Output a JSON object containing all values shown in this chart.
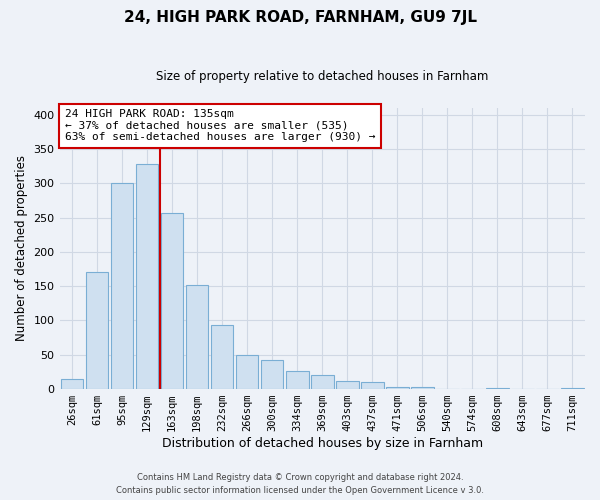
{
  "title": "24, HIGH PARK ROAD, FARNHAM, GU9 7JL",
  "subtitle": "Size of property relative to detached houses in Farnham",
  "xlabel": "Distribution of detached houses by size in Farnham",
  "ylabel": "Number of detached properties",
  "footer_line1": "Contains HM Land Registry data © Crown copyright and database right 2024.",
  "footer_line2": "Contains public sector information licensed under the Open Government Licence v 3.0.",
  "bar_labels": [
    "26sqm",
    "61sqm",
    "95sqm",
    "129sqm",
    "163sqm",
    "198sqm",
    "232sqm",
    "266sqm",
    "300sqm",
    "334sqm",
    "369sqm",
    "403sqm",
    "437sqm",
    "471sqm",
    "506sqm",
    "540sqm",
    "574sqm",
    "608sqm",
    "643sqm",
    "677sqm",
    "711sqm"
  ],
  "bar_values": [
    15,
    170,
    300,
    328,
    257,
    152,
    94,
    49,
    42,
    27,
    20,
    12,
    11,
    3,
    3,
    0,
    0,
    2,
    0,
    0,
    2
  ],
  "bar_color": "#cfe0f0",
  "bar_edge_color": "#7aaed4",
  "vline_x": 3.5,
  "vline_color": "#cc0000",
  "annotation_text": "24 HIGH PARK ROAD: 135sqm\n← 37% of detached houses are smaller (535)\n63% of semi-detached houses are larger (930) →",
  "annotation_box_edge": "#cc0000",
  "annotation_box_face": "white",
  "ylim": [
    0,
    410
  ],
  "yticks": [
    0,
    50,
    100,
    150,
    200,
    250,
    300,
    350,
    400
  ],
  "grid_color": "#d0d8e4",
  "background_color": "#eef2f8"
}
